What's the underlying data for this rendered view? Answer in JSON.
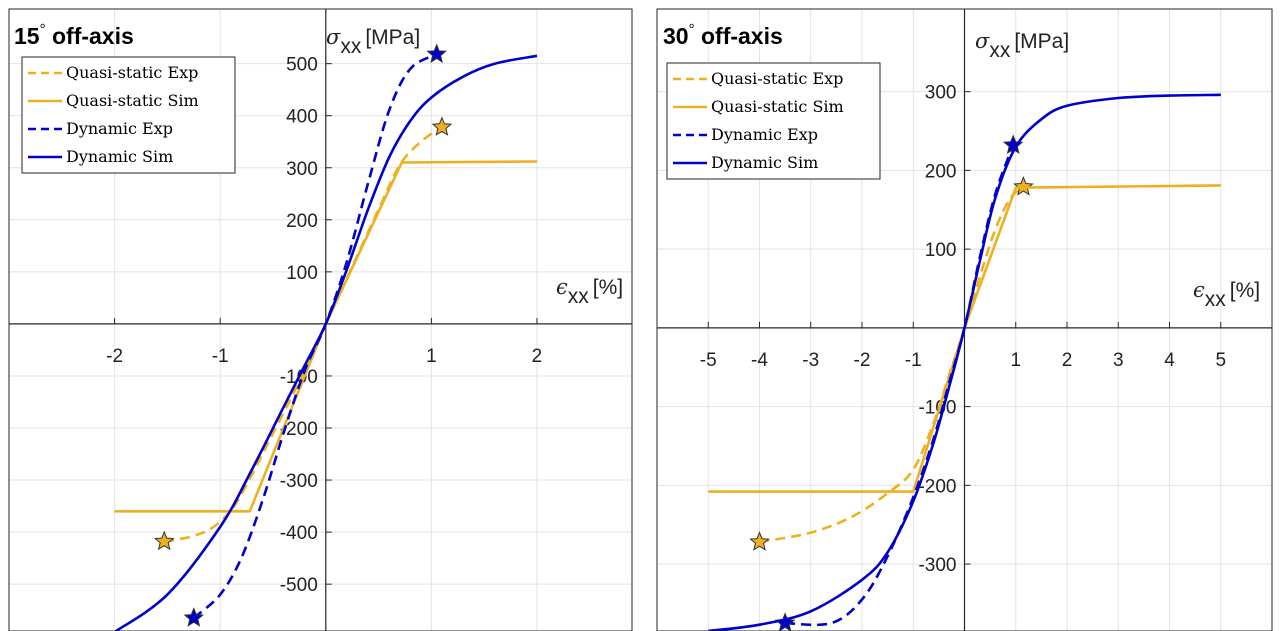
{
  "colors": {
    "quasi": "#EDB120",
    "dynamic": "#0000CC",
    "grid": "#e3e3e3",
    "axis": "#262626",
    "star_edge": "#333333"
  },
  "chart_data": [
    {
      "type": "line",
      "title": "15° off-axis",
      "title_main": "15",
      "title_deg": "°",
      "title_rest": " off-axis",
      "xlabel": "ϵxx [%]",
      "xlabel_sym": "ϵ",
      "xlabel_sub": "xx",
      "xlabel_unit": "[%]",
      "ylabel": "σxx [MPa]",
      "ylabel_sym": "σ",
      "ylabel_sub": "xx",
      "ylabel_unit": "[MPa]",
      "xlim": [
        -3,
        2.9
      ],
      "ylim": [
        -590,
        605
      ],
      "xticks": [
        -2,
        -1,
        1,
        2
      ],
      "xtick_labels": [
        "-2",
        "-1",
        "1",
        "2"
      ],
      "yticks": [
        -500,
        -400,
        -300,
        -200,
        -100,
        100,
        200,
        300,
        400,
        500
      ],
      "ytick_labels": [
        "-500",
        "-400",
        "-300",
        "-200",
        "-100",
        "100",
        "200",
        "300",
        "400",
        "500"
      ],
      "grid": true,
      "legend": "top-left",
      "series": [
        {
          "name": "Quasi-static Exp",
          "style": "dashed",
          "color": "quasi",
          "x": [
            -1.53,
            -1.3,
            -1.1,
            -0.95,
            -0.85,
            -0.7,
            -0.5,
            -0.25,
            0,
            0.25,
            0.5,
            0.7,
            0.9,
            1.1
          ],
          "y": [
            -418,
            -410,
            -395,
            -370,
            -345,
            -290,
            -210,
            -110,
            0,
            110,
            220,
            305,
            350,
            378
          ],
          "end_markers": "both"
        },
        {
          "name": "Quasi-static Sim",
          "style": "solid",
          "color": "quasi",
          "x": [
            -2,
            -0.72,
            0,
            0.72,
            2
          ],
          "y": [
            -360,
            -360,
            0,
            310,
            312
          ]
        },
        {
          "name": "Dynamic Exp",
          "style": "dashed",
          "color": "dynamic",
          "x": [
            -1.25,
            -1.0,
            -0.8,
            -0.6,
            -0.4,
            -0.2,
            0,
            0.2,
            0.4,
            0.6,
            0.8,
            1.05
          ],
          "y": [
            -565,
            -520,
            -450,
            -340,
            -210,
            -90,
            0,
            120,
            270,
            410,
            490,
            518
          ],
          "end_markers": "both"
        },
        {
          "name": "Dynamic Sim",
          "style": "solid",
          "color": "dynamic",
          "x": [
            -2,
            -1.5,
            -1.0,
            -0.7,
            -0.4,
            -0.2,
            0,
            0.2,
            0.4,
            0.6,
            0.8,
            1.0,
            1.3,
            1.6,
            2.0
          ],
          "y": [
            -592,
            -520,
            -390,
            -280,
            -160,
            -80,
            0,
            105,
            220,
            320,
            390,
            435,
            475,
            500,
            515
          ]
        }
      ]
    },
    {
      "type": "line",
      "title": "30° off-axis",
      "title_main": "30",
      "title_deg": "°",
      "title_rest": " off-axis",
      "xlabel": "ϵxx [%]",
      "xlabel_sym": "ϵ",
      "xlabel_sub": "xx",
      "xlabel_unit": "[%]",
      "ylabel": "σxx [MPa]",
      "ylabel_sym": "σ",
      "ylabel_sub": "xx",
      "ylabel_unit": "[MPa]",
      "xlim": [
        -6,
        6
      ],
      "ylim": [
        -385,
        405
      ],
      "xticks": [
        -5,
        -4,
        -3,
        -2,
        -1,
        1,
        2,
        3,
        4,
        5
      ],
      "xtick_labels": [
        "-5",
        "-4",
        "-3",
        "-2",
        "-1",
        "1",
        "2",
        "3",
        "4",
        "5"
      ],
      "yticks": [
        -300,
        -200,
        -100,
        100,
        200,
        300
      ],
      "ytick_labels": [
        "-300",
        "-200",
        "-100",
        "100",
        "200",
        "300"
      ],
      "grid": true,
      "legend": "top-left",
      "series": [
        {
          "name": "Quasi-static Exp",
          "style": "dashed",
          "color": "quasi",
          "x": [
            -4.0,
            -3.0,
            -2.2,
            -1.5,
            -1.0,
            -0.6,
            -0.3,
            0,
            0.3,
            0.6,
            0.9,
            1.15
          ],
          "y": [
            -272,
            -260,
            -240,
            -210,
            -180,
            -120,
            -60,
            0,
            65,
            125,
            165,
            179
          ],
          "end_markers": "both"
        },
        {
          "name": "Quasi-static Sim",
          "style": "solid",
          "color": "quasi",
          "x": [
            -5,
            -1.0,
            0,
            1.0,
            5
          ],
          "y": [
            -208,
            -208,
            0,
            178,
            181
          ]
        },
        {
          "name": "Dynamic Exp",
          "style": "dashed",
          "color": "dynamic",
          "x": [
            -3.5,
            -2.6,
            -2.0,
            -1.5,
            -1.0,
            -0.6,
            -0.3,
            0,
            0.3,
            0.6,
            0.95
          ],
          "y": [
            -375,
            -375,
            -345,
            -290,
            -215,
            -140,
            -70,
            0,
            90,
            170,
            232
          ],
          "end_markers": "both"
        },
        {
          "name": "Dynamic Sim",
          "style": "solid",
          "color": "dynamic",
          "x": [
            -5,
            -4,
            -3,
            -2,
            -1.5,
            -1.0,
            -0.6,
            -0.3,
            0,
            0.3,
            0.6,
            1.0,
            1.5,
            2.0,
            3.0,
            4.0,
            5.0
          ],
          "y": [
            -385,
            -377,
            -360,
            -320,
            -285,
            -220,
            -145,
            -75,
            0,
            85,
            165,
            230,
            265,
            282,
            292,
            295,
            296
          ]
        }
      ]
    }
  ]
}
